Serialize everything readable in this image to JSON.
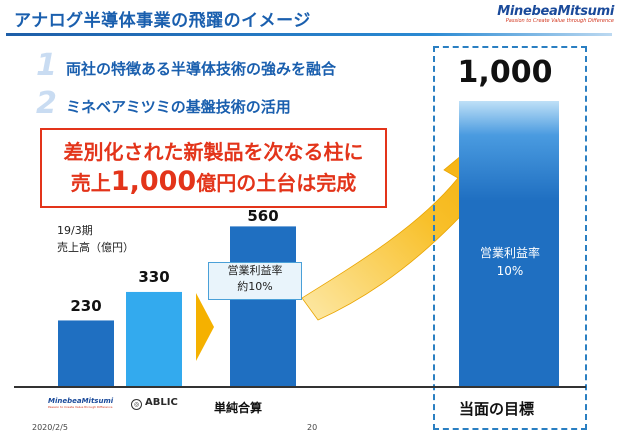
{
  "header": {
    "title": "アナログ半導体事業の飛躍のイメージ",
    "logo_wordmark": "MinebeaMitsumi",
    "logo_tagline": "Passion to Create Value through Difference"
  },
  "points": [
    {
      "num": "1",
      "text": "両社の特徴ある半導体技術の強みを融合"
    },
    {
      "num": "2",
      "text": "ミネベアミツミの基盤技術の活用"
    }
  ],
  "callout": {
    "line1": "差別化された新製品を次なる柱に",
    "line2_pre": "売上",
    "line2_big": "1,000",
    "line2_post": "億円の土台は完成"
  },
  "chart_data": {
    "type": "bar",
    "title": "",
    "period_label": "19/3期",
    "unit_label": "売上高（億円）",
    "categories": [
      "MinebeaMitsumi",
      "ABLIC",
      "単純合算",
      "当面の目標"
    ],
    "values": [
      230,
      330,
      560,
      1000
    ],
    "value_labels": [
      "230",
      "330",
      "560",
      "1,000"
    ],
    "annotations": [
      {
        "category": "単純合算",
        "line1": "営業利益率",
        "line2": "約10%"
      },
      {
        "category": "当面の目標",
        "line1": "営業利益率",
        "line2": "10%"
      }
    ],
    "colors": {
      "minebea": "#1f6fc1",
      "ablic": "#33aaee",
      "combined": "#1f6fc1",
      "target": "#1f6fc1",
      "arrow": "#f5b100"
    }
  },
  "footer": {
    "ablic_logo": "ABLIC",
    "combined_label": "単純合算",
    "target_label": "当面の目標",
    "date": "2020/2/5",
    "page": "20"
  }
}
